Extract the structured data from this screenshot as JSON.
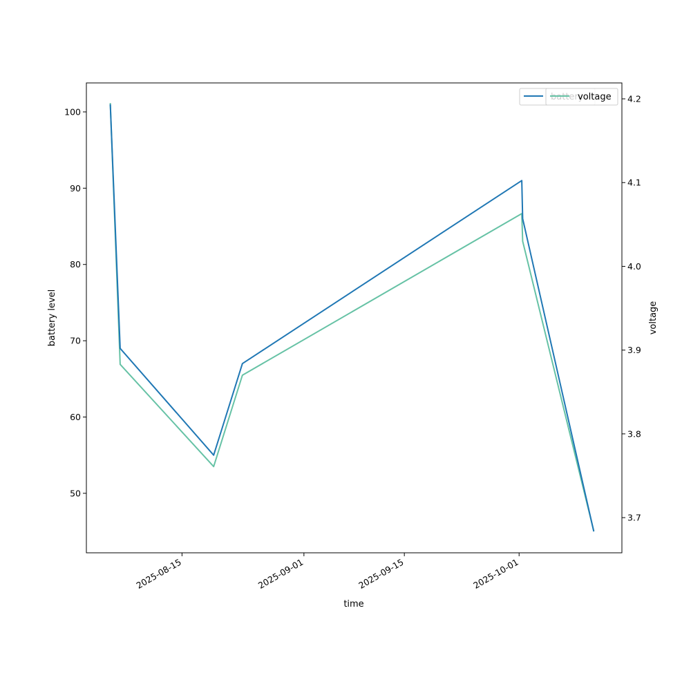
{
  "chart_data": {
    "type": "line",
    "xlabel": "time",
    "ylabel": "battery level",
    "y2label": "voltage",
    "x_tick_labels": [
      "2025-08-15",
      "2025-09-01",
      "2025-09-15",
      "2025-10-01"
    ],
    "y_ticks": [
      50,
      60,
      70,
      80,
      90,
      100
    ],
    "y2_ticks": [
      "3.7",
      "3.8",
      "3.9",
      "4.0",
      "4.1",
      "4.2"
    ],
    "xlim": [
      "2025-08-01T16:00",
      "2025-10-15T08:00"
    ],
    "ylim": [
      42.2,
      103.8
    ],
    "y2lim": [
      3.658,
      4.219
    ],
    "grid": false,
    "series": [
      {
        "name": "battery",
        "axis": "left",
        "color": "#1f77b4",
        "points": [
          {
            "x": "2025-08-05",
            "y": 101
          },
          {
            "x": "2025-08-06T09:00",
            "y": 69
          },
          {
            "x": "2025-08-19T10:00",
            "y": 55
          },
          {
            "x": "2025-08-23T10:00",
            "y": 67
          },
          {
            "x": "2025-10-01T09:00",
            "y": 91
          },
          {
            "x": "2025-10-01T12:00",
            "y": 86
          },
          {
            "x": "2025-10-11T10:00",
            "y": 45
          }
        ]
      },
      {
        "name": "voltage",
        "axis": "right",
        "color": "#66c2a5",
        "points": [
          {
            "x": "2025-08-05",
            "y": 4.195
          },
          {
            "x": "2025-08-06T09:00",
            "y": 3.883
          },
          {
            "x": "2025-08-19T10:00",
            "y": 3.761
          },
          {
            "x": "2025-08-23T10:00",
            "y": 3.87
          },
          {
            "x": "2025-10-01T09:00",
            "y": 4.063
          },
          {
            "x": "2025-10-01T12:00",
            "y": 4.03
          },
          {
            "x": "2025-10-11T10:00",
            "y": 3.684
          }
        ]
      }
    ],
    "legends": [
      {
        "position": "upper right",
        "entries": [
          "battery"
        ]
      },
      {
        "position": "upper right",
        "entries": [
          "voltage"
        ]
      }
    ]
  }
}
